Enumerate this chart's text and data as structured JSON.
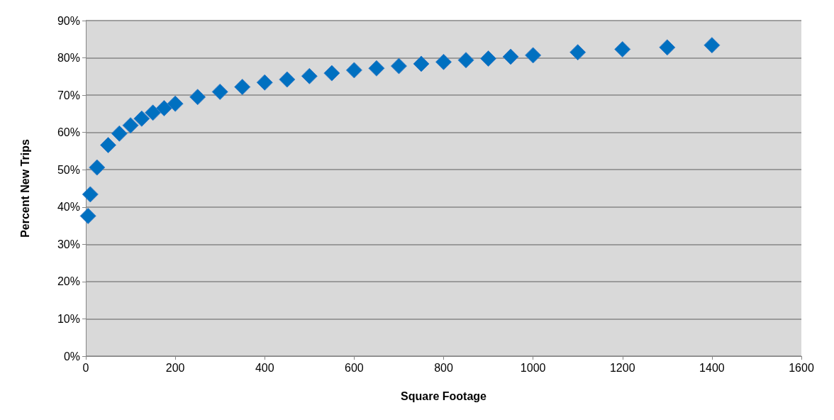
{
  "chart_data": {
    "type": "scatter",
    "xlabel": "Square Footage",
    "ylabel": "Percent New Trips",
    "x": [
      5,
      10,
      25,
      50,
      75,
      100,
      125,
      150,
      175,
      200,
      250,
      300,
      350,
      400,
      450,
      500,
      550,
      600,
      650,
      700,
      750,
      800,
      850,
      900,
      950,
      1000,
      1100,
      1200,
      1300,
      1400
    ],
    "values": [
      37.6,
      43.4,
      50.6,
      56.6,
      59.7,
      61.9,
      63.7,
      65.3,
      66.5,
      67.7,
      69.5,
      70.9,
      72.2,
      73.4,
      74.2,
      75.1,
      75.9,
      76.7,
      77.2,
      77.8,
      78.4,
      78.9,
      79.4,
      79.8,
      80.3,
      80.7,
      81.5,
      82.3,
      82.8,
      83.4
    ],
    "color": "#0070c0",
    "marker": "diamond",
    "grid": "y",
    "xlim": [
      0,
      1600
    ],
    "xticks": [
      0,
      200,
      400,
      600,
      800,
      1000,
      1200,
      1400,
      1600
    ],
    "ylim": [
      0,
      90
    ],
    "yticks": [
      {
        "value": 0,
        "label": "0%"
      },
      {
        "value": 10,
        "label": "10%"
      },
      {
        "value": 20,
        "label": "20%"
      },
      {
        "value": 30,
        "label": "30%"
      },
      {
        "value": 40,
        "label": "40%"
      },
      {
        "value": 50,
        "label": "50%"
      },
      {
        "value": 60,
        "label": "60%"
      },
      {
        "value": 70,
        "label": "70%"
      },
      {
        "value": 80,
        "label": "80%"
      },
      {
        "value": 90,
        "label": "90%"
      }
    ]
  }
}
